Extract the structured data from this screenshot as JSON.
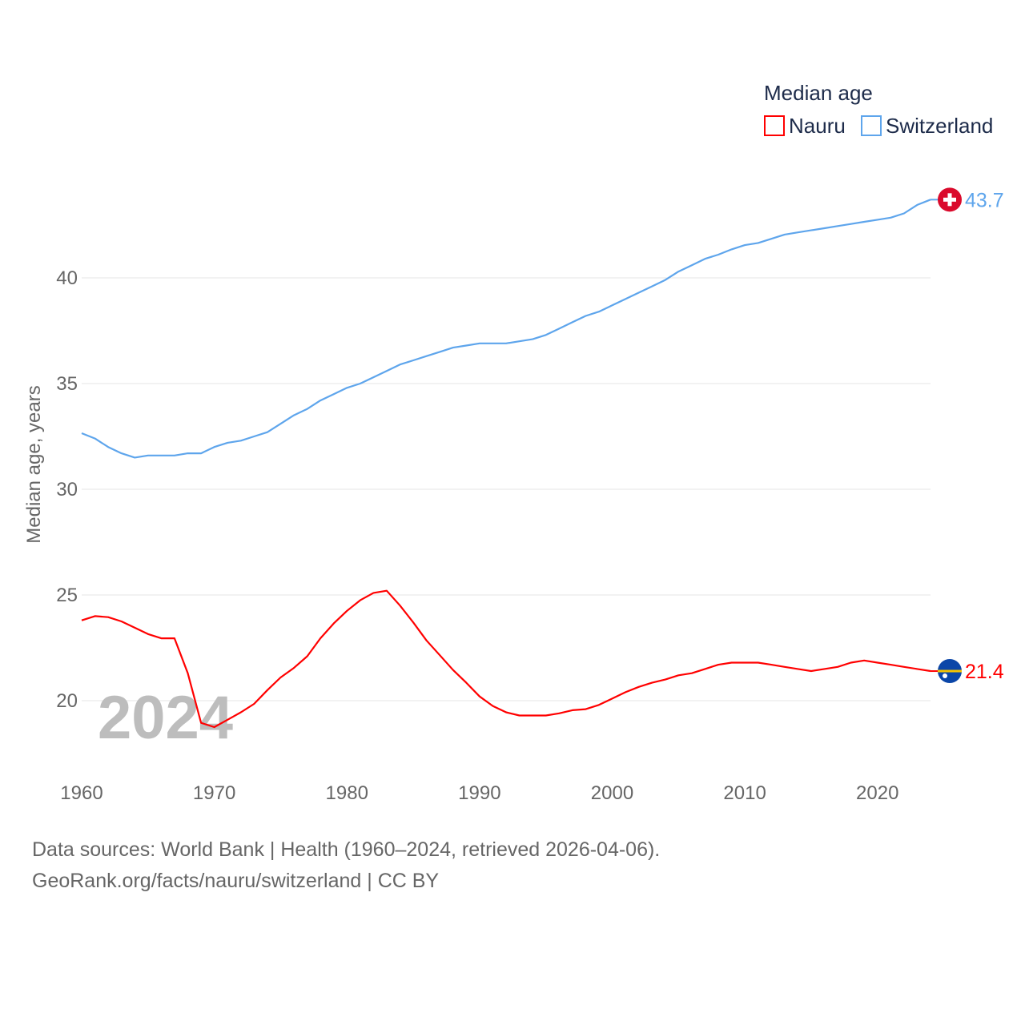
{
  "chart_data": {
    "type": "line",
    "title": "",
    "xlabel": "",
    "ylabel": "Median age, years",
    "xlim": [
      1960,
      2024
    ],
    "ylim": [
      17.5,
      44.5
    ],
    "xticks": [
      1960,
      1970,
      1980,
      1990,
      2000,
      2010,
      2020
    ],
    "yticks": [
      20,
      25,
      30,
      35,
      40
    ],
    "grid": true,
    "legend": {
      "title": "Median age",
      "placement": "top-right"
    },
    "watermark_year": "2024",
    "x": [
      1960,
      1961,
      1962,
      1963,
      1964,
      1965,
      1966,
      1967,
      1968,
      1969,
      1970,
      1971,
      1972,
      1973,
      1974,
      1975,
      1976,
      1977,
      1978,
      1979,
      1980,
      1981,
      1982,
      1983,
      1984,
      1985,
      1986,
      1987,
      1988,
      1989,
      1990,
      1991,
      1992,
      1993,
      1994,
      1995,
      1996,
      1997,
      1998,
      1999,
      2000,
      2001,
      2002,
      2003,
      2004,
      2005,
      2006,
      2007,
      2008,
      2009,
      2010,
      2011,
      2012,
      2013,
      2014,
      2015,
      2016,
      2017,
      2018,
      2019,
      2020,
      2021,
      2022,
      2023,
      2024
    ],
    "series": [
      {
        "name": "Nauru",
        "color": "#ff0000",
        "end_label": "21.4",
        "flag": "nauru-flag",
        "values": [
          23.8,
          24.0,
          23.95,
          23.75,
          23.45,
          23.15,
          22.95,
          22.95,
          21.3,
          18.95,
          18.75,
          19.1,
          19.45,
          19.85,
          20.5,
          21.1,
          21.55,
          22.1,
          22.95,
          23.65,
          24.25,
          24.75,
          25.1,
          25.2,
          24.5,
          23.7,
          22.85,
          22.15,
          21.45,
          20.85,
          20.2,
          19.75,
          19.45,
          19.3,
          19.3,
          19.3,
          19.4,
          19.55,
          19.6,
          19.8,
          20.1,
          20.4,
          20.65,
          20.85,
          21.0,
          21.2,
          21.3,
          21.5,
          21.7,
          21.8,
          21.8,
          21.8,
          21.7,
          21.6,
          21.5,
          21.4,
          21.5,
          21.6,
          21.8,
          21.9,
          21.8,
          21.7,
          21.6,
          21.5,
          21.4
        ]
      },
      {
        "name": "Switzerland",
        "color": "#5ea5ec",
        "end_label": "43.7",
        "flag": "switzerland-flag",
        "values": [
          32.65,
          32.4,
          32.0,
          31.7,
          31.5,
          31.6,
          31.6,
          31.6,
          31.7,
          31.7,
          32.0,
          32.2,
          32.3,
          32.5,
          32.7,
          33.1,
          33.5,
          33.8,
          34.2,
          34.5,
          34.8,
          35.0,
          35.3,
          35.6,
          35.9,
          36.1,
          36.3,
          36.5,
          36.7,
          36.8,
          36.9,
          36.9,
          36.9,
          37.0,
          37.1,
          37.3,
          37.6,
          37.9,
          38.2,
          38.4,
          38.7,
          39.0,
          39.3,
          39.6,
          39.9,
          40.3,
          40.6,
          40.9,
          41.1,
          41.35,
          41.55,
          41.65,
          41.85,
          42.05,
          42.15,
          42.25,
          42.35,
          42.45,
          42.55,
          42.65,
          42.75,
          42.85,
          43.05,
          43.45,
          43.7
        ]
      }
    ]
  },
  "footer": {
    "line1": "Data sources: World Bank | Health (1960–2024, retrieved 2026-04-06).",
    "line2": "GeoRank.org/facts/nauru/switzerland | CC BY"
  }
}
